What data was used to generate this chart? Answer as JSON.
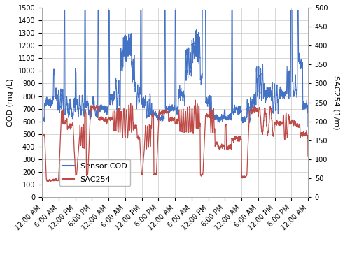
{
  "ylabel_left": "COD (mg /L)",
  "ylabel_right": "SAC254 (1/m)",
  "ylim_left": [
    0,
    1500
  ],
  "ylim_right": [
    0,
    500
  ],
  "xtick_labels": [
    "12:00 AM",
    "6:00 AM",
    "12:00 PM",
    "6:00 PM",
    "12:00 AM",
    "6:00 AM",
    "12:00 PM",
    "6:00 PM",
    "12:00 AM",
    "6:00 AM",
    "12:00 PM",
    "6:00 PM",
    "12:00 AM",
    "6:00 AM",
    "12:00 PM",
    "6:00 PM",
    "12:00 AM"
  ],
  "color_cod": "#4472C4",
  "color_sac": "#BE4B48",
  "legend_labels": [
    "Sensor COD",
    "SAC254"
  ],
  "background_color": "#ffffff",
  "grid_color": "#c8c8c8",
  "linewidth_cod": 0.8,
  "linewidth_sac": 0.9,
  "legend_fontsize": 8,
  "tick_fontsize": 7,
  "ylabel_fontsize": 8
}
